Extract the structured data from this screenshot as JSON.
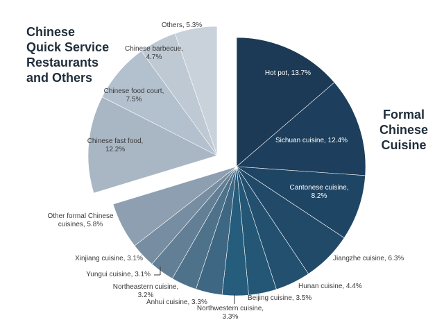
{
  "chart_data": {
    "type": "pie",
    "groups": [
      {
        "title_lines": [
          "Chinese",
          "Quick Service",
          "Restaurants",
          "and Others"
        ],
        "slices": [
          {
            "label": "Chinese fast food,",
            "value_label": "12.2%",
            "value": 12.2,
            "color": "#a9b7c5"
          },
          {
            "label": "Chinese food court,",
            "value_label": "7.5%",
            "value": 7.5,
            "color": "#b3c0cd"
          },
          {
            "label": "Chinese barbecue,",
            "value_label": "4.7%",
            "value": 4.7,
            "color": "#bec9d4"
          },
          {
            "label": "Others, 5.3%",
            "value_label": "",
            "value": 5.3,
            "color": "#c9d2db"
          }
        ]
      },
      {
        "title_lines": [
          "Formal",
          "Chinese",
          "Cuisine"
        ],
        "slices": [
          {
            "label": "Hot pot, 13.7%",
            "value_label": "",
            "value": 13.7,
            "color": "#1c3a55"
          },
          {
            "label": "Sichuan cuisine, 12.4%",
            "value_label": "",
            "value": 12.4,
            "color": "#1d3e5c"
          },
          {
            "label": "Cantonese cuisine,",
            "value_label": "8.2%",
            "value": 8.2,
            "color": "#1f4564"
          },
          {
            "label": "Jiangzhe cuisine, 6.3%",
            "value_label": "",
            "value": 6.3,
            "color": "#214a69"
          },
          {
            "label": "Hunan cuisine, 4.4%",
            "value_label": "",
            "value": 4.4,
            "color": "#23506f"
          },
          {
            "label": "Beijing cuisine, 3.5%",
            "value_label": "",
            "value": 3.5,
            "color": "#245676"
          },
          {
            "label": "Northwestern cuisine,",
            "value_label": "3.3%",
            "value": 3.3,
            "color": "#265c7c"
          },
          {
            "label": "Anhui cuisine, 3.3%",
            "value_label": "",
            "value": 3.3,
            "color": "#3d6782"
          },
          {
            "label": "Northeastern cuisine,",
            "value_label": "3.2%",
            "value": 3.2,
            "color": "#4f728b"
          },
          {
            "label": "Yungui cuisine, 3.1%",
            "value_label": "",
            "value": 3.1,
            "color": "#637f96"
          },
          {
            "label": "Xinjiang cuisine, 3.1%",
            "value_label": "",
            "value": 3.1,
            "color": "#778da1"
          },
          {
            "label": "Other formal Chinese",
            "value_label": "cuisines, 5.8%",
            "value": 5.8,
            "color": "#8d9fb0"
          }
        ]
      }
    ]
  }
}
